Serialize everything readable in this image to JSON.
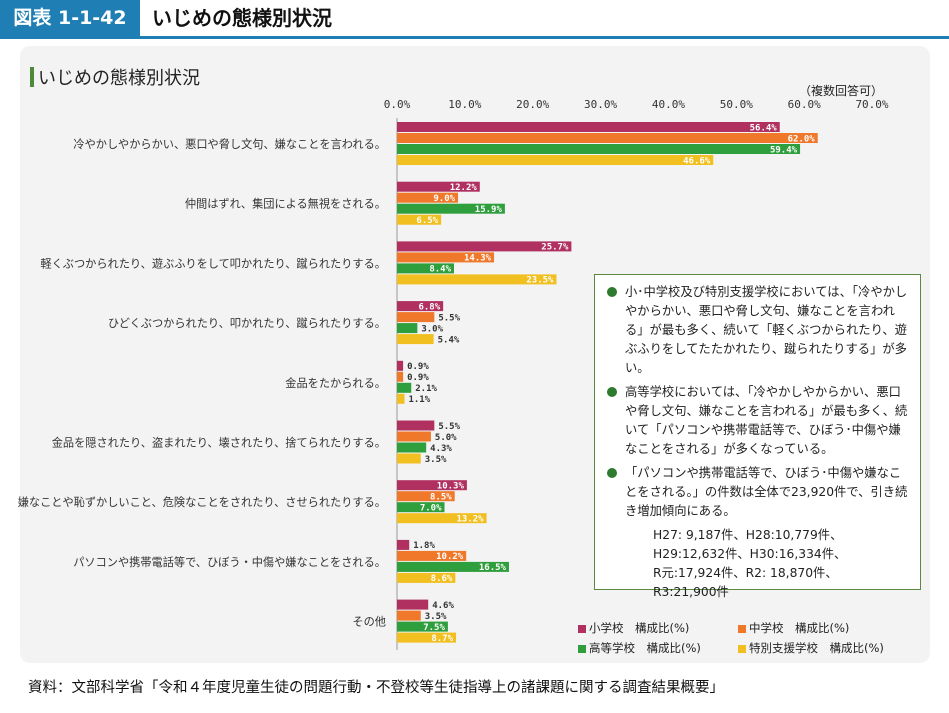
{
  "header": {
    "figure_label": "図表 1-1-42",
    "title": "いじめの態様別状況"
  },
  "panel": {
    "title": "いじめの態様別状況"
  },
  "colors": {
    "header_blue": "#1f7fb5",
    "elementary": "#b0305f",
    "junior_high": "#f0782a",
    "high_school": "#2f9e3c",
    "special_support": "#f2bf20"
  },
  "chart_data": {
    "type": "bar",
    "orientation": "horizontal",
    "unit_note": "（複数回答可）",
    "xlim": [
      0,
      70
    ],
    "ticks": [
      "0.0%",
      "10.0%",
      "20.0%",
      "30.0%",
      "40.0%",
      "50.0%",
      "60.0%",
      "70.0%"
    ],
    "categories": [
      "冷やかしやからかい、悪口や脅し文句、嫌なことを言われる。",
      "仲間はずれ、集団による無視をされる。",
      "軽くぶつかられたり、遊ぶふりをして叩かれたり、蹴られたりする。",
      "ひどくぶつかられたり、叩かれたり、蹴られたりする。",
      "金品をたかられる。",
      "金品を隠されたり、盗まれたり、壊されたり、捨てられたりする。",
      "嫌なことや恥ずかしいこと、危険なことをされたり、させられたりする。",
      "パソコンや携帯電話等で、ひぼう・中傷や嫌なことをされる。",
      "その他"
    ],
    "series": [
      {
        "name": "小学校　構成比(%)",
        "color": "#b0305f",
        "values": [
          56.4,
          12.2,
          25.7,
          6.8,
          0.9,
          5.5,
          10.3,
          1.8,
          4.6
        ]
      },
      {
        "name": "中学校　構成比(%)",
        "color": "#f0782a",
        "values": [
          62.0,
          9.0,
          14.3,
          5.5,
          0.9,
          5.0,
          8.5,
          10.2,
          3.5
        ]
      },
      {
        "name": "高等学校　構成比(%)",
        "color": "#2f9e3c",
        "values": [
          59.4,
          15.9,
          8.4,
          3.0,
          2.1,
          4.3,
          7.0,
          16.5,
          7.5
        ]
      },
      {
        "name": "特別支援学校　構成比(%)",
        "color": "#f2bf20",
        "values": [
          46.6,
          6.5,
          23.5,
          5.4,
          1.1,
          3.5,
          13.2,
          8.6,
          8.7
        ]
      }
    ]
  },
  "notes": {
    "items": [
      "小･中学校及び特別支援学校においては、「冷やかしやからかい、悪口や脅し文句、嫌なことを言われる」が最も多く、続いて「軽くぶつかられたり、遊ぶふりをしてたたかれたり、蹴られたりする」が多い。",
      "高等学校においては、「冷やかしやからかい、悪口や脅し文句、嫌なことを言われる」が最も多く、続いて「パソコンや携帯電話等で、ひぼう･中傷や嫌なことをされる」が多くなっている。",
      "「パソコンや携帯電話等で、ひぼう･中傷や嫌なことをされる。」の件数は全体で23,920件で、引き続き増加傾向にある。"
    ],
    "details": [
      "H27: 9,187件、H28:10,779件、",
      "H29:12,632件、H30:16,334件、",
      "R元:17,924件、R2: 18,870件、",
      "R3:21,900件"
    ]
  },
  "source": "資料：文部科学省「令和４年度児童生徒の問題行動・不登校等生徒指導上の諸課題に関する調査結果概要」"
}
